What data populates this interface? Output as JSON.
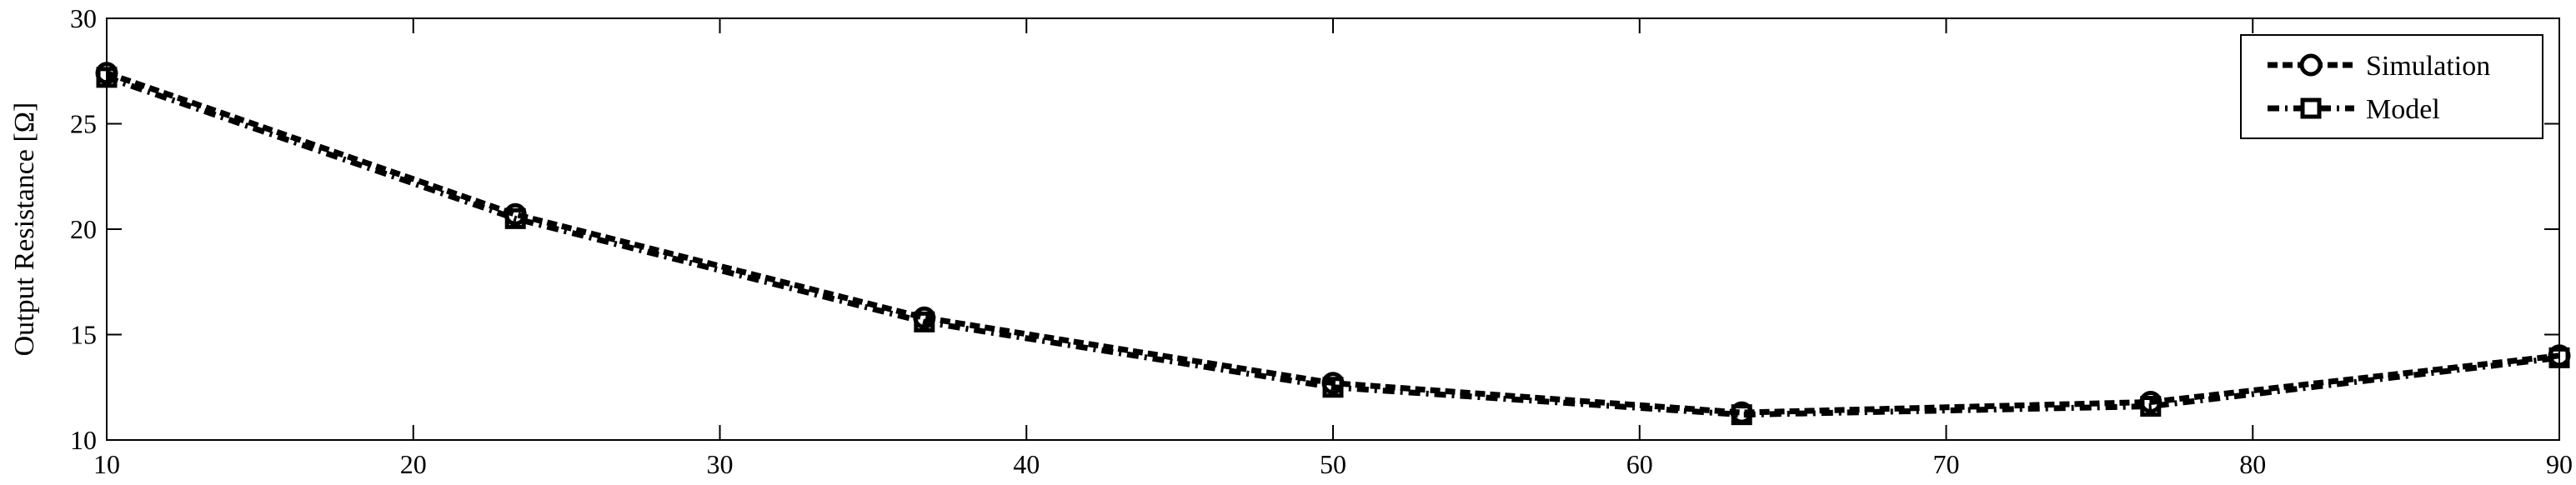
{
  "chart_data": {
    "type": "line",
    "title": "",
    "xlabel": "",
    "ylabel": "Output Resistance [Ω]",
    "xlim": [
      10,
      90
    ],
    "ylim": [
      10,
      30
    ],
    "xticks": [
      10,
      20,
      30,
      40,
      50,
      60,
      70,
      80,
      90
    ],
    "yticks": [
      10,
      15,
      20,
      25,
      30
    ],
    "grid": false,
    "legend_position": "top-right",
    "x": [
      10,
      23.33,
      36.67,
      50,
      63.33,
      76.67,
      90
    ],
    "series": [
      {
        "name": "Simulation",
        "marker": "circle",
        "line_style": "dashed",
        "color": "#000000",
        "values": [
          27.4,
          20.7,
          15.8,
          12.7,
          11.3,
          11.8,
          14.0
        ]
      },
      {
        "name": "Model",
        "marker": "square",
        "line_style": "dash-dot",
        "color": "#000000",
        "values": [
          27.2,
          20.5,
          15.6,
          12.5,
          11.2,
          11.6,
          13.9
        ]
      }
    ]
  }
}
